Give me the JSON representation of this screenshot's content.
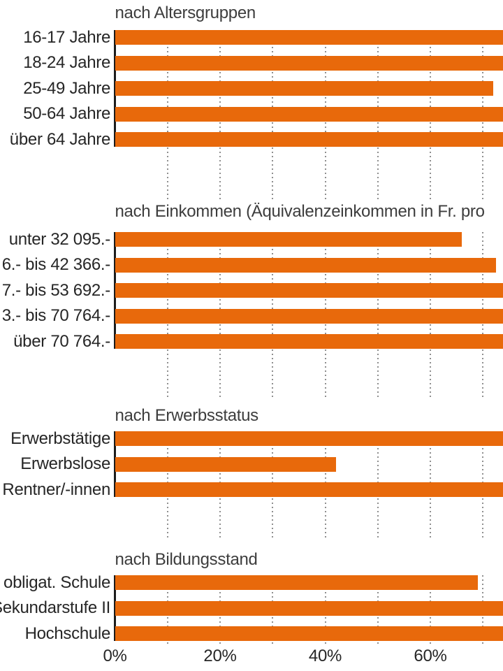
{
  "page": {
    "background_color": "#ffffff",
    "note": "screenshot is a crop of a larger chart; labels clipped at left edge, bars and second panel title clipped at right edge"
  },
  "chart_data": {
    "type": "bar",
    "orientation": "horizontal",
    "unit": "%",
    "bar_color": "#E8690B",
    "grid": "dotted vertical gridlines every 10%",
    "x_axis": {
      "tick_labels": [
        "0%",
        "20%",
        "40%",
        "60%"
      ],
      "tick_values": [
        0,
        20,
        40,
        60
      ],
      "gridline_values": [
        10,
        20,
        30,
        40,
        50,
        60,
        70
      ],
      "visible_max_pct": 73.8
    },
    "sections": [
      {
        "title": "nach Altersgruppen",
        "rows": [
          {
            "label": "16-17 Jahre",
            "value_pct": null,
            "clipped": true
          },
          {
            "label": "18-24 Jahre",
            "value_pct": null,
            "clipped": true
          },
          {
            "label": "25-49 Jahre",
            "value_pct": 72,
            "clipped": false
          },
          {
            "label": "50-64 Jahre",
            "value_pct": null,
            "clipped": true
          },
          {
            "label": "über 64 Jahre",
            "value_pct": null,
            "clipped": true
          }
        ]
      },
      {
        "title": "nach Einkommen (Äquivalenzeinkommen in Fr. pro",
        "rows": [
          {
            "label": "unter 32 095.-",
            "value_pct": 66,
            "clipped": false
          },
          {
            "label": "6.- bis 42 366.-",
            "value_pct": 72.5,
            "clipped": false
          },
          {
            "label": "7.- bis 53 692.-",
            "value_pct": null,
            "clipped": true
          },
          {
            "label": "3.- bis 70 764.-",
            "value_pct": null,
            "clipped": true
          },
          {
            "label": "über 70 764.-",
            "value_pct": null,
            "clipped": true
          }
        ]
      },
      {
        "title": "nach Erwerbsstatus",
        "rows": [
          {
            "label": "Erwerbstätige",
            "value_pct": null,
            "clipped": true
          },
          {
            "label": "Erwerbslose",
            "value_pct": 42,
            "clipped": false
          },
          {
            "label": "Rentner/-innen",
            "value_pct": null,
            "clipped": true
          }
        ]
      },
      {
        "title": "nach Bildungsstand",
        "rows": [
          {
            "label": "obligat. Schule",
            "value_pct": 69,
            "clipped": false
          },
          {
            "label": "Sekundarstufe II",
            "value_pct": null,
            "clipped": true
          },
          {
            "label": "Hochschule",
            "value_pct": null,
            "clipped": true
          }
        ]
      }
    ]
  }
}
